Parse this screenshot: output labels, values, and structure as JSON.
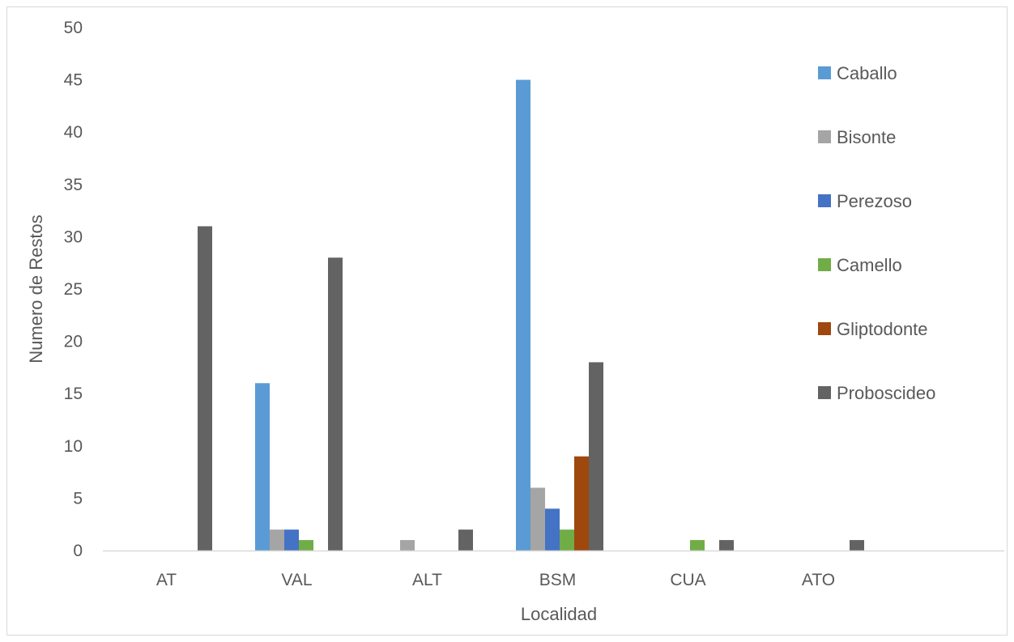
{
  "chart_data": {
    "type": "bar",
    "title": "",
    "xlabel": "Localidad",
    "ylabel": "Numero de Restos",
    "ylim": [
      0,
      50
    ],
    "ytick_step": 5,
    "ytick_labels": [
      "0",
      "5",
      "10",
      "15",
      "20",
      "25",
      "30",
      "35",
      "40",
      "45",
      "50"
    ],
    "grid": false,
    "legend_position": "right",
    "categories": [
      "AT",
      "VAL",
      "ALT",
      "BSM",
      "CUA",
      "ATO"
    ],
    "series": [
      {
        "name": "Caballo",
        "color": "#5b9bd5",
        "values": [
          0,
          16,
          0,
          45,
          0,
          0
        ]
      },
      {
        "name": "Bisonte",
        "color": "#a5a5a5",
        "values": [
          0,
          2,
          1,
          6,
          0,
          0
        ]
      },
      {
        "name": "Perezoso",
        "color": "#4472c4",
        "values": [
          0,
          2,
          0,
          4,
          0,
          0
        ]
      },
      {
        "name": "Camello",
        "color": "#70ad47",
        "values": [
          0,
          1,
          0,
          2,
          1,
          0
        ]
      },
      {
        "name": "Gliptodonte",
        "color": "#9e480e",
        "values": [
          0,
          0,
          0,
          9,
          0,
          0
        ]
      },
      {
        "name": "Proboscideo",
        "color": "#636363",
        "values": [
          31,
          28,
          2,
          18,
          1,
          1
        ]
      }
    ]
  }
}
